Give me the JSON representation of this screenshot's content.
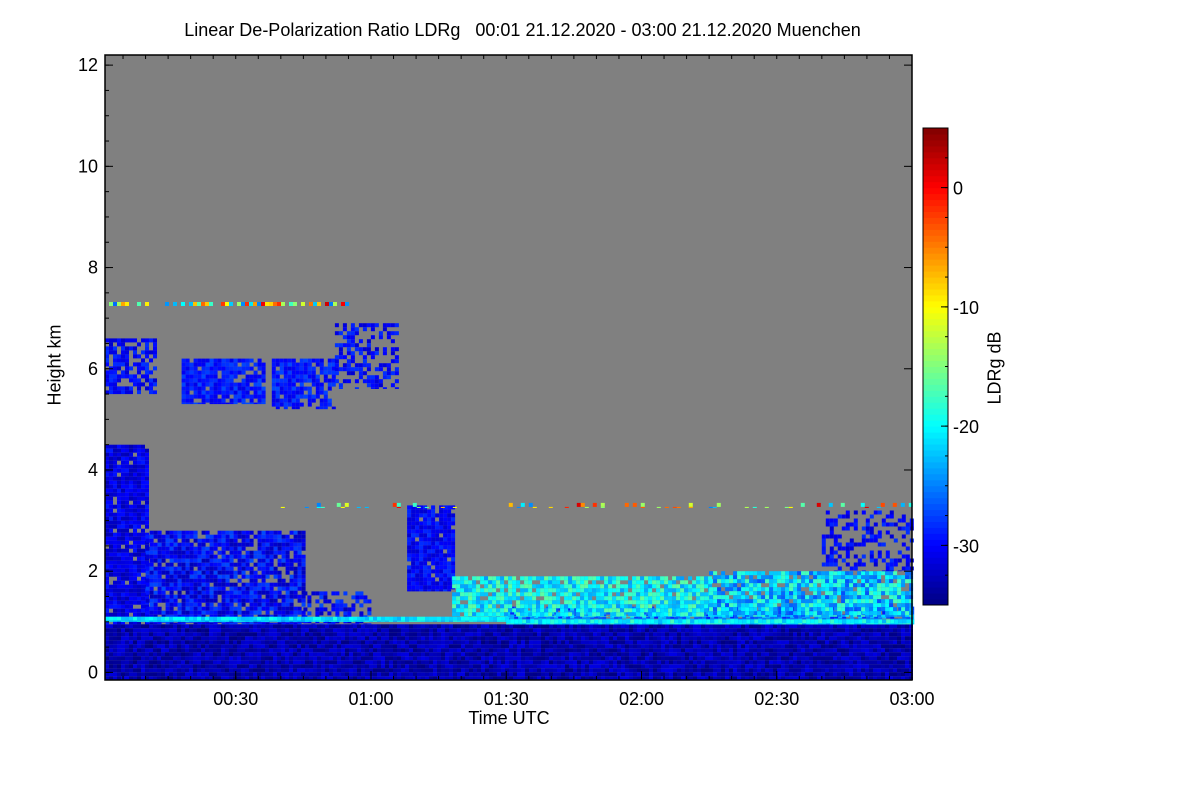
{
  "chart_data": {
    "type": "heatmap",
    "title": "Linear De-Polarization Ratio LDRg   00:01 21.12.2020 - 03:00 21.12.2020 Muenchen",
    "xlabel": "Time UTC",
    "ylabel": "Height km",
    "colorbar_label": "LDRg dB",
    "colormap": "jet",
    "no_data_color": "#808080",
    "xlim_minutes": [
      1,
      180
    ],
    "ylim_km": [
      -0.15,
      12.2
    ],
    "clim_db": [
      -35,
      5
    ],
    "x_ticks": [
      {
        "minute": 30,
        "label": "00:30"
      },
      {
        "minute": 60,
        "label": "01:00"
      },
      {
        "minute": 90,
        "label": "01:30"
      },
      {
        "minute": 120,
        "label": "02:00"
      },
      {
        "minute": 150,
        "label": "02:30"
      },
      {
        "minute": 180,
        "label": "03:00"
      }
    ],
    "y_ticks": [
      {
        "km": 0,
        "label": "0"
      },
      {
        "km": 2,
        "label": "2"
      },
      {
        "km": 4,
        "label": "4"
      },
      {
        "km": 6,
        "label": "6"
      },
      {
        "km": 8,
        "label": "8"
      },
      {
        "km": 10,
        "label": "10"
      },
      {
        "km": 12,
        "label": "12"
      }
    ],
    "colorbar_ticks": [
      {
        "db": 0,
        "label": "0"
      },
      {
        "db": -10,
        "label": "-10"
      },
      {
        "db": -20,
        "label": "-20"
      },
      {
        "db": -30,
        "label": "-30"
      }
    ],
    "features": [
      {
        "name": "boundary-layer",
        "t": [
          1,
          180
        ],
        "h": [
          -0.15,
          0.95
        ],
        "ldr": -33,
        "spread": 2,
        "fill": 1.0
      },
      {
        "name": "boundary-layer-aerosol",
        "t": [
          90,
          180
        ],
        "h": [
          0.95,
          1.3
        ],
        "ldr": -25,
        "spread": 4,
        "fill": 0.9
      },
      {
        "name": "low-cloud-early",
        "t": [
          1,
          10
        ],
        "h": [
          0.95,
          4.5
        ],
        "ldr": -31,
        "spread": 2,
        "fill": 0.95
      },
      {
        "name": "low-cloud-main",
        "t": [
          10,
          45
        ],
        "h": [
          0.95,
          2.8
        ],
        "ldr": -30,
        "spread": 3,
        "fill": 0.9
      },
      {
        "name": "low-cloud-tail",
        "t": [
          45,
          60
        ],
        "h": [
          0.95,
          1.6
        ],
        "ldr": -30,
        "spread": 3,
        "fill": 0.6
      },
      {
        "name": "base-line-early",
        "t": [
          1,
          90
        ],
        "h": [
          1.0,
          1.1
        ],
        "ldr": -21,
        "spread": 2,
        "fill": 1.0
      },
      {
        "name": "base-line-late",
        "t": [
          90,
          180
        ],
        "h": [
          0.95,
          1.05
        ],
        "ldr": -20,
        "spread": 3,
        "fill": 1.0
      },
      {
        "name": "ice-cloud-1",
        "t": [
          1,
          12
        ],
        "h": [
          5.5,
          6.6
        ],
        "ldr": -30,
        "spread": 2,
        "fill": 0.7
      },
      {
        "name": "ice-cloud-2",
        "t": [
          18,
          36
        ],
        "h": [
          5.3,
          6.2
        ],
        "ldr": -29,
        "spread": 2,
        "fill": 0.85
      },
      {
        "name": "ice-cloud-3",
        "t": [
          38,
          52
        ],
        "h": [
          5.2,
          6.2
        ],
        "ldr": -29,
        "spread": 2,
        "fill": 0.8
      },
      {
        "name": "ice-cloud-4",
        "t": [
          52,
          66
        ],
        "h": [
          5.6,
          6.9
        ],
        "ldr": -30,
        "spread": 2,
        "fill": 0.5
      },
      {
        "name": "thin-layer-7km",
        "t": [
          1,
          56
        ],
        "h": [
          7.25,
          7.32
        ],
        "ldr": -12,
        "spread": 14,
        "fill": 0.7
      },
      {
        "name": "fall-streak",
        "t": [
          68,
          78
        ],
        "h": [
          1.6,
          3.3
        ],
        "ldr": -30,
        "spread": 2,
        "fill": 0.9
      },
      {
        "name": "mixed-cloud",
        "t": [
          78,
          135
        ],
        "h": [
          1.1,
          1.9
        ],
        "ldr": -20,
        "spread": 4,
        "fill": 0.9
      },
      {
        "name": "late-cloud",
        "t": [
          135,
          180
        ],
        "h": [
          1.1,
          2.0
        ],
        "ldr": -22,
        "spread": 5,
        "fill": 0.9
      },
      {
        "name": "late-streaks",
        "t": [
          160,
          180
        ],
        "h": [
          2.0,
          3.2
        ],
        "ldr": -30,
        "spread": 2,
        "fill": 0.45
      },
      {
        "name": "layer-3-3km",
        "t": [
          40,
          180
        ],
        "h": [
          3.25,
          3.35
        ],
        "ldr": -12,
        "spread": 14,
        "fill": 0.25
      }
    ]
  }
}
